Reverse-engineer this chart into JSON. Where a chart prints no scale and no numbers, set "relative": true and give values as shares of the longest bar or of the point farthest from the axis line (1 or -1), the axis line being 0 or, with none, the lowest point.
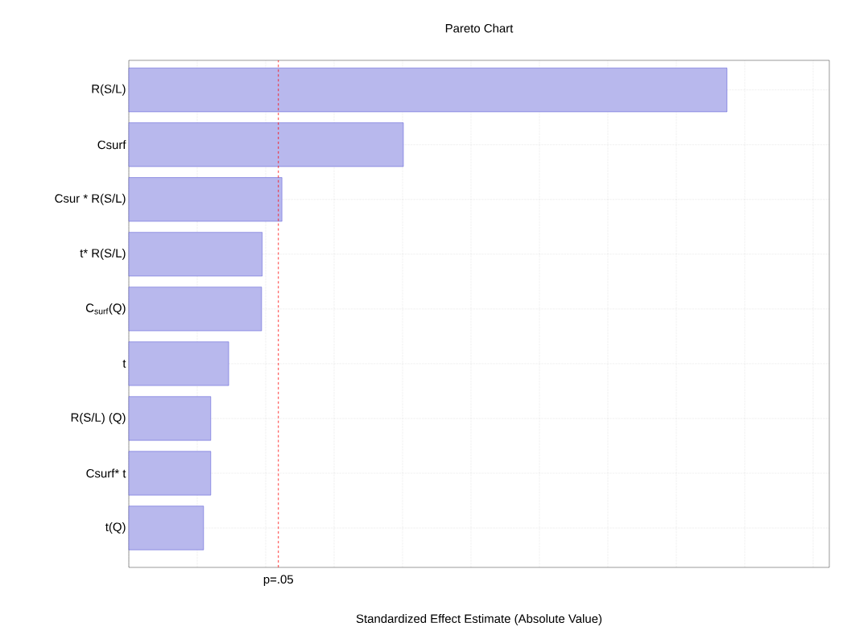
{
  "chart_data": {
    "type": "bar",
    "orientation": "horizontal",
    "relative": true,
    "title": "Pareto Chart",
    "xlabel": "Standardized Effect Estimate (Absolute Value)",
    "categories": [
      "R(S/L)",
      "Csurf",
      "Csur * R(S/L)",
      "t* R(S/L)",
      "C$_{surf}$(Q)",
      "t",
      "R(S/L) (Q)",
      "Csurf* t",
      "t(Q)"
    ],
    "values": [
      1,
      0.459,
      0.256,
      0.223,
      0.222,
      0.167,
      0.137,
      0.137,
      0.125
    ],
    "color": "#3333cc",
    "grid": true,
    "tick_labels": "y",
    "ref_lines": [
      {
        "axis": "x",
        "value": 0.25,
        "label": "p=.05",
        "color": "#ff0000",
        "line_style": "dashed"
      }
    ]
  }
}
